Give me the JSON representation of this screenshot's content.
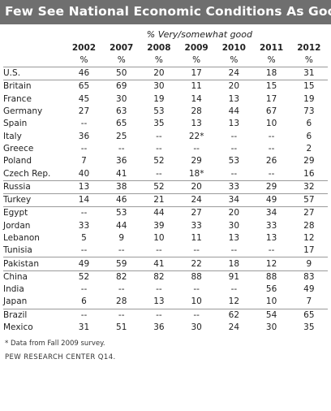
{
  "title": "Few See National Economic Conditions As Good",
  "subtitle": "% Very/somewhat good",
  "chart_data": {
    "type": "table",
    "title": "Few See National Economic Conditions As Good",
    "subtitle": "% Very/somewhat good",
    "columns": [
      "2002",
      "2007",
      "2008",
      "2009",
      "2010",
      "2011",
      "2012"
    ],
    "unit_row": [
      "%",
      "%",
      "%",
      "%",
      "%",
      "%",
      "%"
    ],
    "groups": [
      {
        "rows": [
          {
            "country": "U.S.",
            "values": [
              "46",
              "50",
              "20",
              "17",
              "24",
              "18",
              "31"
            ]
          }
        ]
      },
      {
        "rows": [
          {
            "country": "Britain",
            "values": [
              "65",
              "69",
              "30",
              "11",
              "20",
              "15",
              "15"
            ]
          },
          {
            "country": "France",
            "values": [
              "45",
              "30",
              "19",
              "14",
              "13",
              "17",
              "19"
            ]
          },
          {
            "country": "Germany",
            "values": [
              "27",
              "63",
              "53",
              "28",
              "44",
              "67",
              "73"
            ]
          },
          {
            "country": "Spain",
            "values": [
              "--",
              "65",
              "35",
              "13",
              "13",
              "10",
              "6"
            ]
          },
          {
            "country": "Italy",
            "values": [
              "36",
              "25",
              "--",
              "22*",
              "--",
              "--",
              "6"
            ]
          },
          {
            "country": "Greece",
            "values": [
              "--",
              "--",
              "--",
              "--",
              "--",
              "--",
              "2"
            ]
          },
          {
            "country": "Poland",
            "values": [
              "7",
              "36",
              "52",
              "29",
              "53",
              "26",
              "29"
            ]
          },
          {
            "country": "Czech Rep.",
            "values": [
              "40",
              "41",
              "--",
              "18*",
              "--",
              "--",
              "16"
            ]
          }
        ]
      },
      {
        "rows": [
          {
            "country": "Russia",
            "values": [
              "13",
              "38",
              "52",
              "20",
              "33",
              "29",
              "32"
            ]
          }
        ]
      },
      {
        "rows": [
          {
            "country": "Turkey",
            "values": [
              "14",
              "46",
              "21",
              "24",
              "34",
              "49",
              "57"
            ]
          }
        ]
      },
      {
        "rows": [
          {
            "country": "Egypt",
            "values": [
              "--",
              "53",
              "44",
              "27",
              "20",
              "34",
              "27"
            ]
          },
          {
            "country": "Jordan",
            "values": [
              "33",
              "44",
              "39",
              "33",
              "30",
              "33",
              "28"
            ]
          },
          {
            "country": "Lebanon",
            "values": [
              "5",
              "9",
              "10",
              "11",
              "13",
              "13",
              "12"
            ]
          },
          {
            "country": "Tunisia",
            "values": [
              "--",
              "--",
              "--",
              "--",
              "--",
              "--",
              "17"
            ]
          }
        ]
      },
      {
        "rows": [
          {
            "country": "Pakistan",
            "values": [
              "49",
              "59",
              "41",
              "22",
              "18",
              "12",
              "9"
            ]
          }
        ]
      },
      {
        "rows": [
          {
            "country": "China",
            "values": [
              "52",
              "82",
              "82",
              "88",
              "91",
              "88",
              "83"
            ]
          },
          {
            "country": "India",
            "values": [
              "--",
              "--",
              "--",
              "--",
              "--",
              "56",
              "49"
            ]
          },
          {
            "country": "Japan",
            "values": [
              "6",
              "28",
              "13",
              "10",
              "12",
              "10",
              "7"
            ]
          }
        ]
      },
      {
        "rows": [
          {
            "country": "Brazil",
            "values": [
              "--",
              "--",
              "--",
              "--",
              "62",
              "54",
              "65"
            ]
          },
          {
            "country": "Mexico",
            "values": [
              "31",
              "51",
              "36",
              "30",
              "24",
              "30",
              "35"
            ]
          }
        ]
      }
    ],
    "footnote": "* Data from Fall 2009 survey.",
    "source": "PEW RESEARCH CENTER Q14."
  },
  "colors": {
    "title_bar": "#6f6f6f",
    "title_text": "#ffffff",
    "divider": "#9a9a9a"
  }
}
